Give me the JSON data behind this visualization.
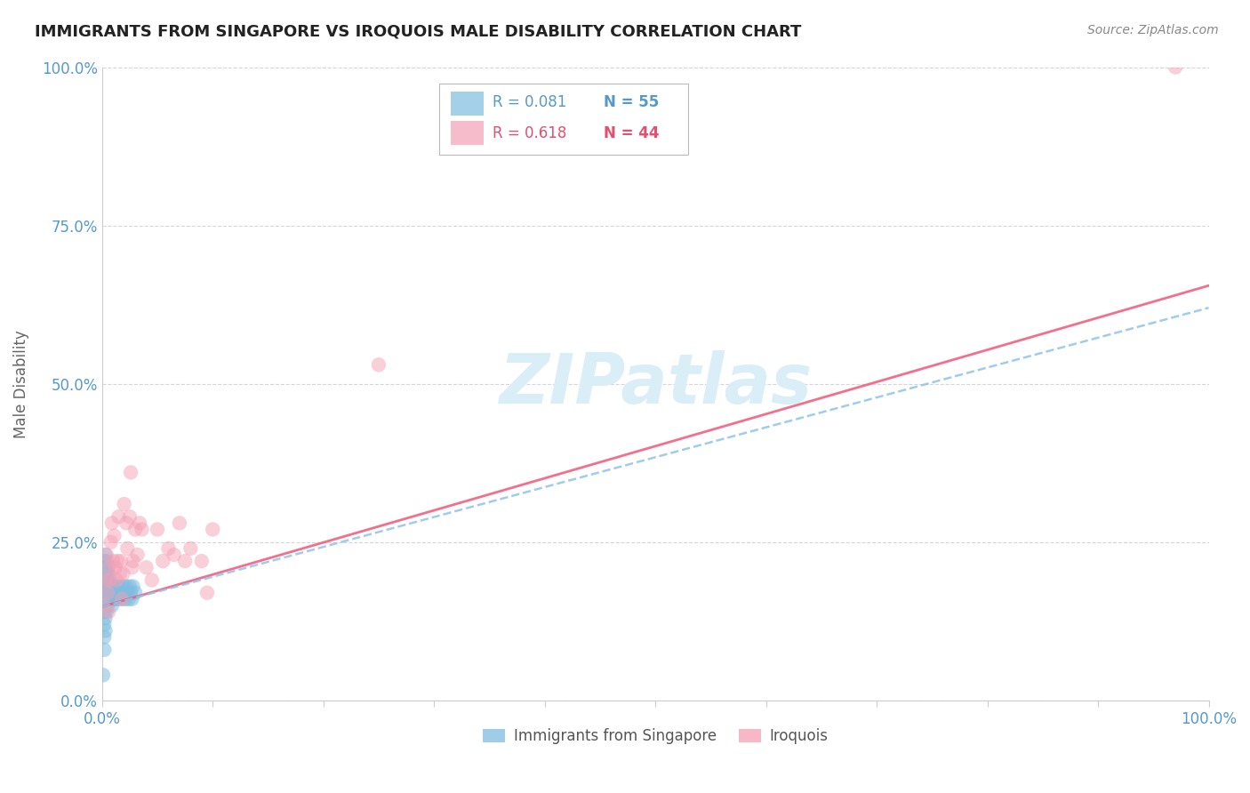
{
  "title": "IMMIGRANTS FROM SINGAPORE VS IROQUOIS MALE DISABILITY CORRELATION CHART",
  "source": "Source: ZipAtlas.com",
  "ylabel": "Male Disability",
  "ytick_values": [
    0,
    0.25,
    0.5,
    0.75,
    1.0
  ],
  "xlim": [
    0,
    1.0
  ],
  "ylim": [
    0,
    1.0
  ],
  "color_blue": "#7fbde0",
  "color_pink": "#f4a0b5",
  "color_blue_line": "#90c4e8",
  "color_pink_line": "#f06080",
  "color_axis_label": "#5599cc",
  "watermark_color": "#daeef8",
  "blue_points_x": [
    0.002,
    0.002,
    0.002,
    0.002,
    0.002,
    0.002,
    0.002,
    0.002,
    0.003,
    0.003,
    0.003,
    0.003,
    0.003,
    0.003,
    0.003,
    0.004,
    0.004,
    0.004,
    0.004,
    0.004,
    0.005,
    0.005,
    0.005,
    0.005,
    0.006,
    0.006,
    0.006,
    0.007,
    0.007,
    0.008,
    0.008,
    0.009,
    0.009,
    0.01,
    0.01,
    0.011,
    0.012,
    0.013,
    0.014,
    0.015,
    0.016,
    0.017,
    0.018,
    0.019,
    0.02,
    0.021,
    0.022,
    0.023,
    0.024,
    0.025,
    0.026,
    0.027,
    0.028,
    0.03,
    0.001
  ],
  "blue_points_y": [
    0.2,
    0.18,
    0.16,
    0.14,
    0.12,
    0.22,
    0.1,
    0.08,
    0.21,
    0.19,
    0.17,
    0.15,
    0.13,
    0.11,
    0.23,
    0.2,
    0.18,
    0.16,
    0.14,
    0.22,
    0.19,
    0.17,
    0.15,
    0.21,
    0.18,
    0.16,
    0.2,
    0.17,
    0.19,
    0.16,
    0.18,
    0.15,
    0.17,
    0.16,
    0.18,
    0.17,
    0.16,
    0.18,
    0.17,
    0.16,
    0.18,
    0.17,
    0.16,
    0.18,
    0.17,
    0.16,
    0.18,
    0.17,
    0.16,
    0.18,
    0.17,
    0.16,
    0.18,
    0.17,
    0.04
  ],
  "pink_points_x": [
    0.002,
    0.003,
    0.004,
    0.005,
    0.006,
    0.006,
    0.007,
    0.008,
    0.009,
    0.01,
    0.011,
    0.012,
    0.013,
    0.014,
    0.015,
    0.016,
    0.017,
    0.018,
    0.019,
    0.02,
    0.022,
    0.023,
    0.025,
    0.026,
    0.027,
    0.028,
    0.03,
    0.032,
    0.034,
    0.036,
    0.04,
    0.045,
    0.05,
    0.055,
    0.06,
    0.065,
    0.07,
    0.075,
    0.08,
    0.09,
    0.095,
    0.25,
    0.97,
    0.1
  ],
  "pink_points_y": [
    0.15,
    0.19,
    0.23,
    0.17,
    0.21,
    0.14,
    0.19,
    0.25,
    0.28,
    0.22,
    0.26,
    0.21,
    0.19,
    0.22,
    0.29,
    0.2,
    0.22,
    0.16,
    0.2,
    0.31,
    0.28,
    0.24,
    0.29,
    0.36,
    0.21,
    0.22,
    0.27,
    0.23,
    0.28,
    0.27,
    0.21,
    0.19,
    0.27,
    0.22,
    0.24,
    0.23,
    0.28,
    0.22,
    0.24,
    0.22,
    0.17,
    0.53,
    1.0,
    0.27
  ],
  "pink_line_x0": 0.0,
  "pink_line_y0": 0.148,
  "pink_line_x1": 1.0,
  "pink_line_y1": 0.655,
  "blue_line_x0": 0.0,
  "blue_line_y0": 0.148,
  "blue_line_x1": 1.0,
  "blue_line_y1": 0.62
}
